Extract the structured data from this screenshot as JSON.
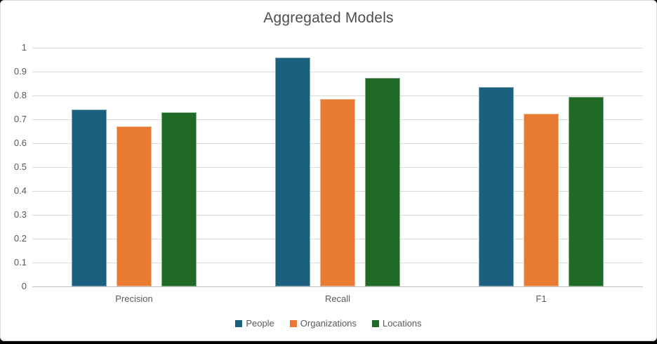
{
  "frame": {
    "card_background": "#FFFFFF",
    "card_border_color": "#D9D9D9",
    "outer_edge_color": "#000000",
    "gridline_color": "#D9D9D9",
    "axis_line_color": "#BFBFBF",
    "text_color": "#595959",
    "title_color": "#4E4E4E"
  },
  "chart_data": {
    "type": "bar",
    "title": "Aggregated Models",
    "categories": [
      "Precision",
      "Recall",
      "F1"
    ],
    "series": [
      {
        "name": "People",
        "color": "#1B617F",
        "values": [
          0.74,
          0.96,
          0.834
        ]
      },
      {
        "name": "Organizations",
        "color": "#E87A32",
        "values": [
          0.672,
          0.785,
          0.723
        ]
      },
      {
        "name": "Locations",
        "color": "#1F6B25",
        "values": [
          0.729,
          0.874,
          0.795
        ]
      }
    ],
    "xlabel": "",
    "ylabel": "",
    "ylim": [
      0,
      1
    ],
    "ytick_labels": [
      "0",
      "0.1",
      "0.2",
      "0.3",
      "0.4",
      "0.5",
      "0.6",
      "0.7",
      "0.8",
      "0.9",
      "1"
    ],
    "grid": true,
    "legend_position": "bottom"
  }
}
